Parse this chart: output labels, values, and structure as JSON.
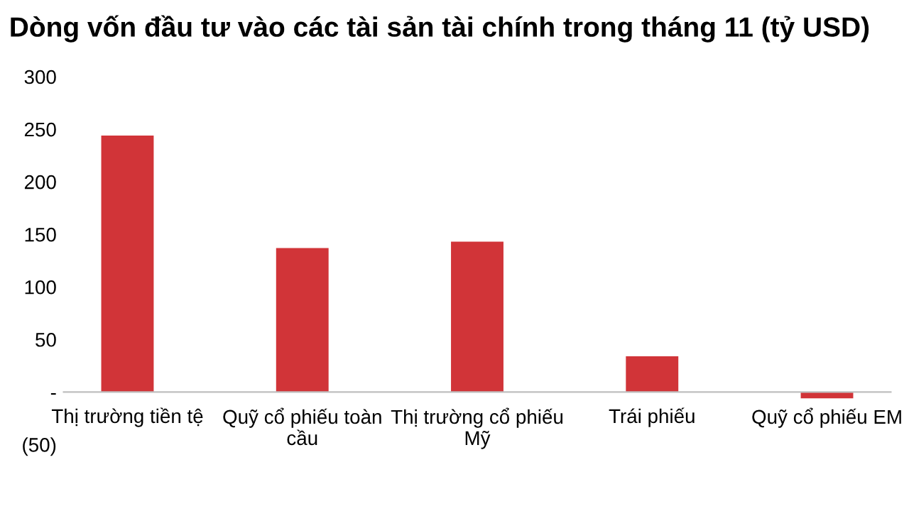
{
  "chart_data": {
    "type": "bar",
    "title": "Dòng vốn đầu tư vào các tài sản tài chính trong tháng 11 (tỷ USD)",
    "categories": [
      "Thị trường tiền tệ",
      "Quỹ cổ phiếu toàn\ncầu",
      "Thị trường cổ phiếu\nMỹ",
      "Trái phiếu",
      "Quỹ cổ phiếu EM"
    ],
    "values": [
      244,
      137,
      143,
      34,
      -6
    ],
    "color": "#d13438",
    "ylim": [
      -50,
      300
    ],
    "yticks": [
      {
        "value": -50,
        "label": "(50)"
      },
      {
        "value": 0,
        "label": "-"
      },
      50,
      100,
      150,
      200,
      250,
      300
    ]
  }
}
